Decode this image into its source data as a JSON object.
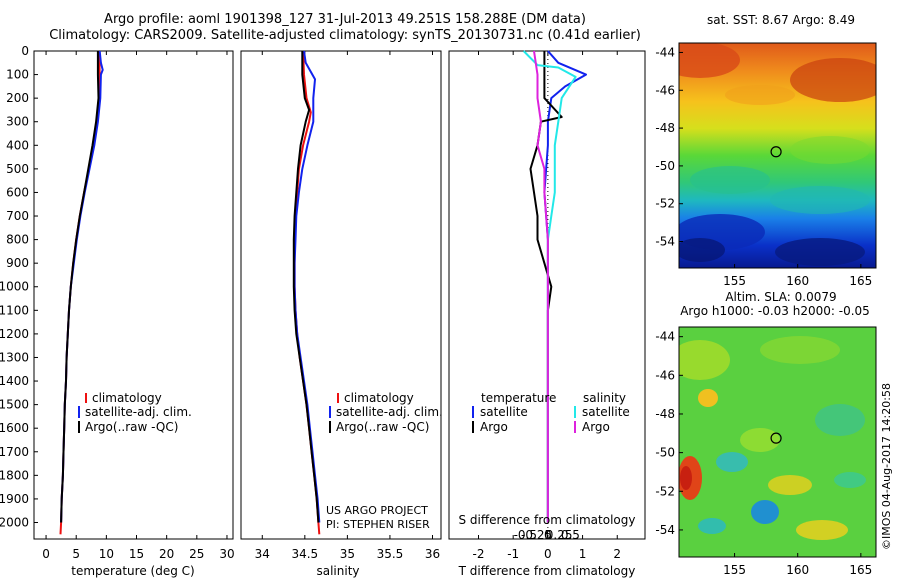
{
  "title_line1": "Argo profile: aoml 1901398_127 31-Jul-2013 49.251S 158.288E (DM data)",
  "title_line2": "Climatology: CARS2009. Satellite-adjusted climatology: synTS_20130731.nc (0.41d earlier)",
  "colors": {
    "climatology": "#ee1111",
    "satellite": "#1122ee",
    "argo": "#000000",
    "sat_salinity": "#22e8e8",
    "argo_salinity": "#dd22dd"
  },
  "chart_data": [
    {
      "type": "line",
      "id": "temperature",
      "xlabel": "temperature (deg C)",
      "xlim": [
        -2,
        31
      ],
      "xticks": [
        0,
        5,
        10,
        15,
        20,
        25,
        30
      ],
      "ylim": [
        2070,
        0
      ],
      "yticks": [
        0,
        100,
        200,
        300,
        400,
        500,
        600,
        700,
        800,
        900,
        1000,
        1100,
        1200,
        1300,
        1400,
        1500,
        1600,
        1700,
        1800,
        1900,
        2000
      ],
      "legend": [
        "climatology",
        "satellite-adj. clim.",
        "Argo(..raw -QC)"
      ],
      "series": [
        {
          "name": "climatology",
          "color_key": "climatology",
          "points": [
            [
              8.8,
              0
            ],
            [
              8.9,
              100
            ],
            [
              8.9,
              200
            ],
            [
              8.5,
              300
            ],
            [
              7.9,
              400
            ],
            [
              7.1,
              500
            ],
            [
              6.3,
              600
            ],
            [
              5.6,
              700
            ],
            [
              5.0,
              800
            ],
            [
              4.5,
              900
            ],
            [
              4.1,
              1000
            ],
            [
              3.8,
              1100
            ],
            [
              3.6,
              1200
            ],
            [
              3.4,
              1300
            ],
            [
              3.3,
              1400
            ],
            [
              3.1,
              1500
            ],
            [
              3.0,
              1600
            ],
            [
              2.9,
              1700
            ],
            [
              2.8,
              1800
            ],
            [
              2.6,
              1900
            ],
            [
              2.5,
              2000
            ],
            [
              2.4,
              2050
            ]
          ]
        },
        {
          "name": "satellite-adj. clim.",
          "color_key": "satellite",
          "points": [
            [
              8.9,
              0
            ],
            [
              9.1,
              50
            ],
            [
              9.4,
              80
            ],
            [
              9.1,
              100
            ],
            [
              9.0,
              200
            ],
            [
              8.6,
              300
            ],
            [
              8.0,
              400
            ],
            [
              7.2,
              500
            ],
            [
              6.4,
              600
            ],
            [
              5.7,
              700
            ],
            [
              5.1,
              800
            ],
            [
              4.6,
              900
            ],
            [
              4.1,
              1000
            ],
            [
              3.8,
              1100
            ],
            [
              3.6,
              1200
            ],
            [
              3.4,
              1300
            ],
            [
              3.3,
              1400
            ],
            [
              3.1,
              1500
            ],
            [
              3.0,
              1600
            ],
            [
              2.9,
              1700
            ],
            [
              2.8,
              1800
            ],
            [
              2.6,
              1900
            ],
            [
              2.5,
              2000
            ]
          ]
        },
        {
          "name": "Argo(..raw -QC)",
          "color_key": "argo",
          "points": [
            [
              8.6,
              0
            ],
            [
              8.6,
              100
            ],
            [
              8.7,
              200
            ],
            [
              8.3,
              300
            ],
            [
              7.7,
              400
            ],
            [
              7.0,
              500
            ],
            [
              6.3,
              600
            ],
            [
              5.6,
              700
            ],
            [
              5.0,
              800
            ],
            [
              4.5,
              900
            ],
            [
              4.1,
              1000
            ],
            [
              3.8,
              1100
            ],
            [
              3.6,
              1200
            ],
            [
              3.4,
              1300
            ],
            [
              3.3,
              1400
            ],
            [
              3.1,
              1500
            ],
            [
              3.0,
              1600
            ],
            [
              2.9,
              1700
            ],
            [
              2.8,
              1800
            ],
            [
              2.6,
              1900
            ],
            [
              2.5,
              2000
            ]
          ]
        }
      ]
    },
    {
      "type": "line",
      "id": "salinity",
      "xlabel": "salinity",
      "xlim": [
        33.75,
        36.1
      ],
      "xticks": [
        34,
        34.5,
        35,
        35.5,
        36
      ],
      "ylim": [
        2070,
        0
      ],
      "legend": [
        "climatology",
        "satellite-adj. clim.",
        "Argo(..raw -QC)"
      ],
      "annotations": [
        "US ARGO PROJECT",
        "PI: STEPHEN RISER"
      ],
      "series": [
        {
          "name": "climatology",
          "color_key": "climatology",
          "points": [
            [
              34.48,
              0
            ],
            [
              34.49,
              100
            ],
            [
              34.52,
              200
            ],
            [
              34.57,
              260
            ],
            [
              34.55,
              300
            ],
            [
              34.48,
              400
            ],
            [
              34.43,
              500
            ],
            [
              34.41,
              600
            ],
            [
              34.39,
              700
            ],
            [
              34.38,
              800
            ],
            [
              34.38,
              900
            ],
            [
              34.38,
              1000
            ],
            [
              34.39,
              1100
            ],
            [
              34.41,
              1200
            ],
            [
              34.44,
              1300
            ],
            [
              34.48,
              1400
            ],
            [
              34.52,
              1500
            ],
            [
              34.55,
              1600
            ],
            [
              34.58,
              1700
            ],
            [
              34.61,
              1800
            ],
            [
              34.64,
              1900
            ],
            [
              34.66,
              2000
            ],
            [
              34.67,
              2050
            ]
          ]
        },
        {
          "name": "satellite-adj. clim.",
          "color_key": "satellite",
          "points": [
            [
              34.49,
              0
            ],
            [
              34.51,
              50
            ],
            [
              34.62,
              120
            ],
            [
              34.6,
              200
            ],
            [
              34.6,
              300
            ],
            [
              34.53,
              400
            ],
            [
              34.47,
              500
            ],
            [
              34.43,
              600
            ],
            [
              34.4,
              700
            ],
            [
              34.39,
              800
            ],
            [
              34.38,
              900
            ],
            [
              34.38,
              1000
            ],
            [
              34.39,
              1100
            ],
            [
              34.41,
              1200
            ],
            [
              34.45,
              1300
            ],
            [
              34.49,
              1400
            ],
            [
              34.53,
              1500
            ],
            [
              34.56,
              1600
            ],
            [
              34.59,
              1700
            ],
            [
              34.62,
              1800
            ],
            [
              34.65,
              1900
            ],
            [
              34.67,
              2000
            ]
          ]
        },
        {
          "name": "Argo(..raw -QC)",
          "color_key": "argo",
          "points": [
            [
              34.47,
              0
            ],
            [
              34.47,
              100
            ],
            [
              34.5,
              200
            ],
            [
              34.55,
              250
            ],
            [
              34.51,
              300
            ],
            [
              34.45,
              400
            ],
            [
              34.42,
              500
            ],
            [
              34.4,
              600
            ],
            [
              34.38,
              700
            ],
            [
              34.37,
              800
            ],
            [
              34.37,
              900
            ],
            [
              34.37,
              1000
            ],
            [
              34.38,
              1100
            ],
            [
              34.4,
              1200
            ],
            [
              34.44,
              1300
            ],
            [
              34.48,
              1400
            ],
            [
              34.52,
              1500
            ],
            [
              34.55,
              1600
            ],
            [
              34.58,
              1700
            ],
            [
              34.61,
              1800
            ],
            [
              34.64,
              1900
            ],
            [
              34.66,
              2000
            ]
          ]
        }
      ]
    },
    {
      "type": "line",
      "id": "difference",
      "xlabel": "T difference from climatology",
      "xlabel2": "S difference from climatology",
      "xlim": [
        -2.85,
        2.8
      ],
      "xticks": [
        -2,
        -1,
        0,
        1,
        2
      ],
      "xticks2": [
        -0.5,
        -0.25,
        0,
        0.25,
        0.5
      ],
      "ylim": [
        2070,
        0
      ],
      "legend_temperature": {
        "header": "temperature",
        "items": [
          "satellite",
          "Argo"
        ]
      },
      "legend_salinity": {
        "header": "salinity",
        "items": [
          "satellite",
          "Argo"
        ]
      },
      "series": [
        {
          "name": "temperature satellite",
          "color_key": "satellite",
          "points": [
            [
              0.0,
              0
            ],
            [
              0.3,
              50
            ],
            [
              1.1,
              100
            ],
            [
              0.5,
              150
            ],
            [
              0.1,
              200
            ],
            [
              0.0,
              300
            ],
            [
              0.0,
              400
            ],
            [
              -0.1,
              600
            ],
            [
              0.0,
              800
            ],
            [
              0.0,
              1000
            ],
            [
              0.0,
              1200
            ],
            [
              0.0,
              1400
            ],
            [
              0.0,
              1600
            ],
            [
              0.0,
              1800
            ],
            [
              0.0,
              2000
            ]
          ]
        },
        {
          "name": "temperature Argo",
          "color_key": "argo",
          "points": [
            [
              -0.1,
              0
            ],
            [
              -0.1,
              100
            ],
            [
              -0.1,
              200
            ],
            [
              0.4,
              280
            ],
            [
              -0.2,
              300
            ],
            [
              -0.3,
              400
            ],
            [
              -0.5,
              500
            ],
            [
              -0.4,
              600
            ],
            [
              -0.3,
              700
            ],
            [
              -0.3,
              800
            ],
            [
              -0.1,
              900
            ],
            [
              0.1,
              1000
            ],
            [
              0.0,
              1100
            ],
            [
              0.0,
              1200
            ],
            [
              0.0,
              1300
            ],
            [
              0.0,
              1400
            ],
            [
              0.0,
              1500
            ],
            [
              0.0,
              1600
            ],
            [
              0.0,
              1700
            ],
            [
              0.0,
              1800
            ],
            [
              0.0,
              1900
            ],
            [
              0.0,
              2000
            ]
          ]
        },
        {
          "name": "salinity satellite",
          "color_key": "sat_salinity",
          "points": [
            [
              -0.7,
              0
            ],
            [
              -0.3,
              60
            ],
            [
              0.3,
              70
            ],
            [
              0.8,
              110
            ],
            [
              0.4,
              200
            ],
            [
              0.3,
              300
            ],
            [
              0.2,
              400
            ],
            [
              0.2,
              500
            ],
            [
              0.2,
              600
            ],
            [
              0.1,
              700
            ],
            [
              0.0,
              800
            ],
            [
              0.0,
              1000
            ],
            [
              0.0,
              1200
            ],
            [
              0.0,
              1400
            ],
            [
              0.0,
              1600
            ],
            [
              0.0,
              1800
            ],
            [
              0.0,
              2000
            ]
          ]
        },
        {
          "name": "salinity Argo",
          "color_key": "argo_salinity",
          "points": [
            [
              -0.4,
              0
            ],
            [
              -0.3,
              100
            ],
            [
              -0.3,
              200
            ],
            [
              -0.2,
              300
            ],
            [
              -0.3,
              400
            ],
            [
              -0.1,
              500
            ],
            [
              -0.1,
              600
            ],
            [
              0.0,
              800
            ],
            [
              0.0,
              1000
            ],
            [
              0.0,
              1200
            ],
            [
              0.0,
              1400
            ],
            [
              0.0,
              1600
            ],
            [
              0.0,
              1800
            ],
            [
              0.0,
              2000
            ]
          ]
        }
      ]
    },
    {
      "type": "heatmap",
      "id": "sst_map",
      "title": "sat. SST: 8.67  Argo: 8.49",
      "xlim": [
        150.6,
        166.2
      ],
      "ylim": [
        -55.4,
        -43.5
      ],
      "xticks": [
        155,
        160,
        165
      ],
      "yticks": [
        -44,
        -46,
        -48,
        -50,
        -52,
        -54
      ],
      "marker": [
        158.288,
        -49.251
      ]
    },
    {
      "type": "heatmap",
      "id": "sla_map",
      "title": "Altim. SLA: 0.0079",
      "title2": "Argo h1000: -0.03  h2000: -0.05",
      "xlim": [
        150.6,
        166.2
      ],
      "ylim": [
        -55.4,
        -43.5
      ],
      "xticks": [
        155,
        160,
        165
      ],
      "yticks": [
        -44,
        -46,
        -48,
        -50,
        -52,
        -54
      ],
      "marker": [
        158.288,
        -49.251
      ]
    }
  ],
  "credit": "©IMOS 04-Aug-2017 14:20:58"
}
